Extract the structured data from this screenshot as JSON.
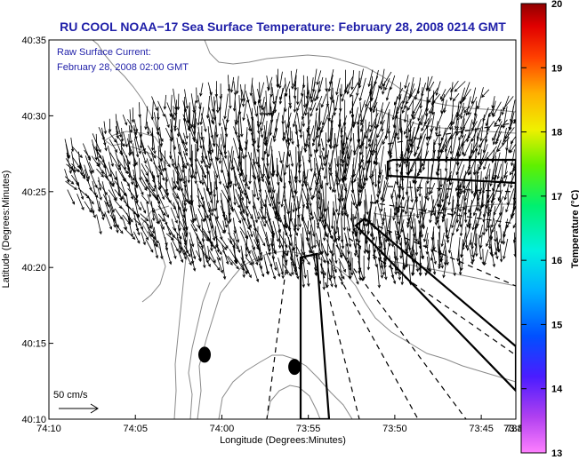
{
  "chart_data": {
    "type": "map-vector-field",
    "title": "RU COOL  NOAA−17  Sea Surface Temperature:  February 28, 2008 0214 GMT",
    "annotation_lines": [
      "Raw Surface Current:",
      "February 28, 2008 02:00 GMT"
    ],
    "xlabel": "Longitude (Degrees:Minutes)",
    "ylabel": "Latitude (Degrees:Minutes)",
    "xlim_minutes_west": [
      10,
      -17
    ],
    "ylim_minutes": [
      10,
      35
    ],
    "x_ticks": [
      {
        "value": 10,
        "label": "74:10"
      },
      {
        "value": 5,
        "label": "74:05"
      },
      {
        "value": 0,
        "label": "74:00"
      },
      {
        "value": -5,
        "label": "73:55"
      },
      {
        "value": -10,
        "label": "73:50"
      },
      {
        "value": -15,
        "label": "73:45"
      },
      {
        "value": -20,
        "label": "73:40"
      },
      {
        "value": -25,
        "label": "73:35"
      },
      {
        "value": -30,
        "label": "73:3"
      }
    ],
    "y_ticks": [
      {
        "value": 10,
        "label": "40:10"
      },
      {
        "value": 15,
        "label": "40:15"
      },
      {
        "value": 20,
        "label": "40:20"
      },
      {
        "value": 25,
        "label": "40:25"
      },
      {
        "value": 30,
        "label": "40:30"
      },
      {
        "value": 35,
        "label": "40:35"
      }
    ],
    "scale_arrow_label": "50 cm/s",
    "colorbar": {
      "label": "Temperature (°C)",
      "range": [
        13,
        20
      ],
      "ticks": [
        "20",
        "19",
        "18",
        "17",
        "16",
        "15",
        "14",
        "13"
      ]
    },
    "markers": [
      {
        "lon_min": 1.0,
        "lat_min": 14.25
      },
      {
        "lon_min": -4.2,
        "lat_min": 13.45
      }
    ],
    "current_field": {
      "center_lon_min": -6.5,
      "center_lat_min": 26.5,
      "radius_lon_min": 15,
      "radius_lat_min": 6.5,
      "mean_direction": "southward",
      "max_speed_cm_s": 45
    }
  },
  "colors": {
    "title": "#1f1fa8",
    "contour": "#8a8a8a",
    "vector": "#000000"
  }
}
